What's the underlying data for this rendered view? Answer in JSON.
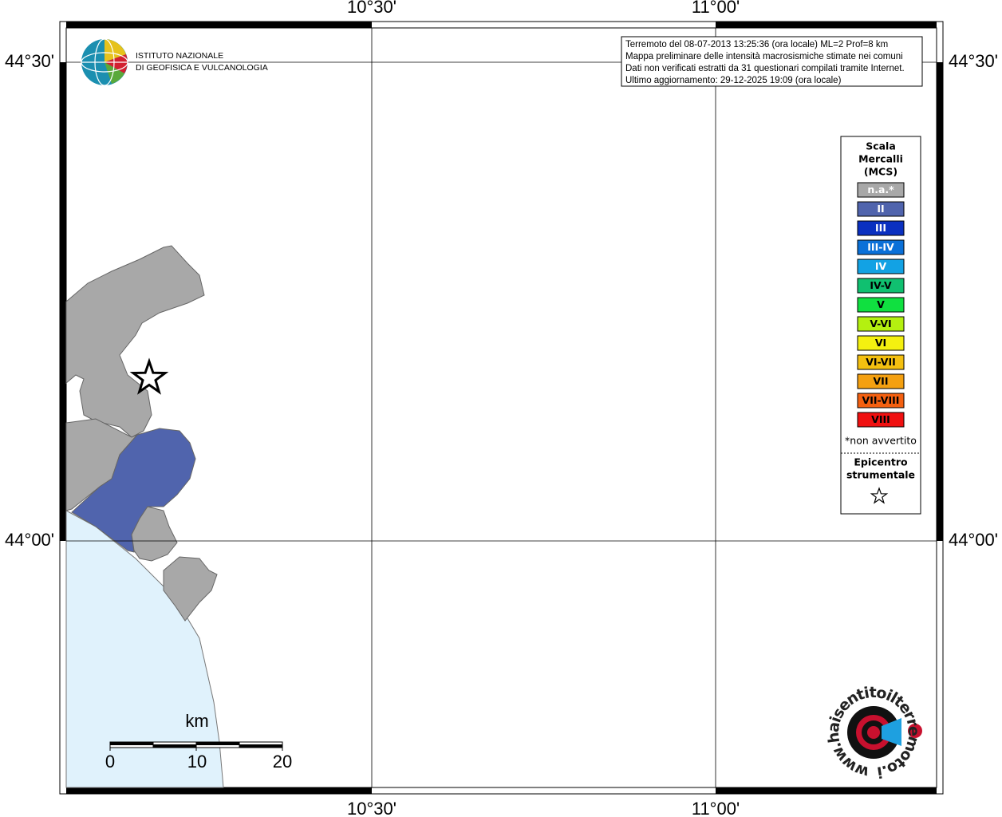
{
  "logo": {
    "line1": "ISTITUTO NAZIONALE",
    "line2": "DI GEOFISICA E VULCANOLOGIA"
  },
  "info": [
    "Terremoto del 08-07-2013 13:25:36 (ora locale) ML=2 Prof=8 km",
    "Mappa preliminare delle intensità macrosismiche stimate nei comuni",
    "Dati non verificati estratti da 31 questionari compilati tramite Internet.",
    "Ultimo aggiornamento: 29-12-2025 19:09 (ora locale)"
  ],
  "grid": {
    "top": [
      "10°30'",
      "11°00'"
    ],
    "bottom": [
      "10°30'",
      "11°00'"
    ],
    "left": [
      "44°30'",
      "44°00'"
    ],
    "right": [
      "44°30'",
      "44°00'"
    ]
  },
  "legend": {
    "title": [
      "Scala",
      "Mercalli",
      "(MCS)"
    ],
    "items": [
      {
        "label": "n.a.*",
        "color": "#a8a8a8",
        "text_color": "#ffffff"
      },
      {
        "label": "II",
        "color": "#5064ad",
        "text_color": "#ffffff"
      },
      {
        "label": "III",
        "color": "#0a30c0",
        "text_color": "#ffffff"
      },
      {
        "label": "III-IV",
        "color": "#0a70d8",
        "text_color": "#ffffff"
      },
      {
        "label": "IV",
        "color": "#12a2e4",
        "text_color": "#ffffff"
      },
      {
        "label": "IV-V",
        "color": "#10c070",
        "text_color": "#000000"
      },
      {
        "label": "V",
        "color": "#10e040",
        "text_color": "#000000"
      },
      {
        "label": "V-VI",
        "color": "#b4f010",
        "text_color": "#000000"
      },
      {
        "label": "VI",
        "color": "#f4f010",
        "text_color": "#000000"
      },
      {
        "label": "VI-VII",
        "color": "#f4c010",
        "text_color": "#000000"
      },
      {
        "label": "VII",
        "color": "#f4a010",
        "text_color": "#000000"
      },
      {
        "label": "VII-VIII",
        "color": "#f46010",
        "text_color": "#000000"
      },
      {
        "label": "VIII",
        "color": "#f01010",
        "text_color": "#000000"
      }
    ],
    "note": "*non avvertito",
    "epicentre": [
      "Epicentro",
      "strumentale"
    ]
  },
  "scale": {
    "unit": "km",
    "labels": [
      "0",
      "10",
      "20"
    ]
  },
  "site_logo": "www.haisentitoilterremoto.it"
}
